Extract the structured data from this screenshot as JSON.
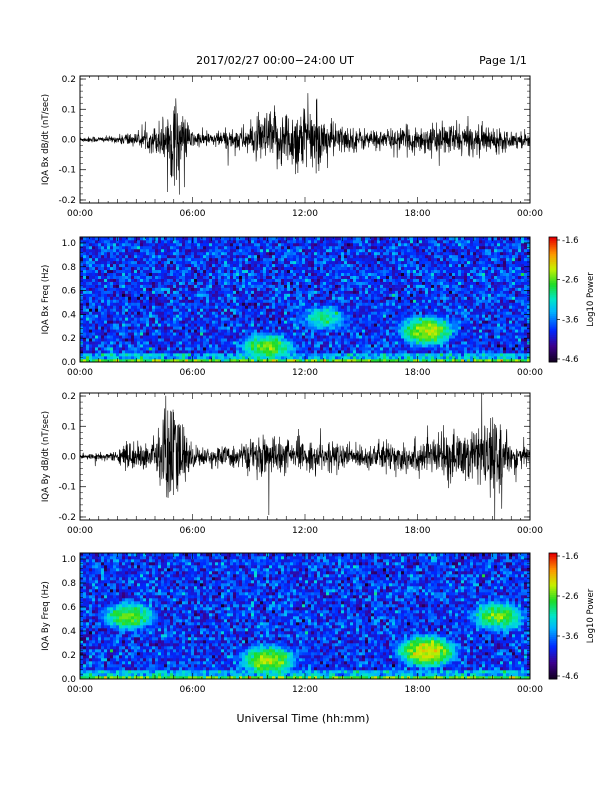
{
  "header": {
    "title": "2017/02/27  00:00−24:00 UT",
    "page": "Page 1/1"
  },
  "footer": {
    "xlabel": "Universal Time (hh:mm)"
  },
  "colorbar": {
    "label": "Log10 Power",
    "ticks": [
      "-1.6",
      "-2.6",
      "-3.6",
      "-4.6"
    ]
  },
  "chart_data": [
    {
      "type": "line",
      "ylabel": "IQA Bx dB/dt (nT/sec)",
      "x_ticks": [
        "00:00",
        "06:00",
        "12:00",
        "18:00",
        "00:00"
      ],
      "y_ticks": [
        "-0.2",
        "-0.1",
        "0.0",
        "0.1",
        "0.2"
      ],
      "xlim": [
        0,
        24
      ],
      "ylim": [
        -0.21,
        0.21
      ],
      "envelope_hours": [
        0,
        2,
        2.5,
        3,
        4,
        4.5,
        5,
        6,
        7,
        8,
        9,
        10,
        11,
        12,
        13,
        14,
        15,
        16,
        17,
        18,
        19,
        20,
        21,
        22,
        23,
        24
      ],
      "envelope_amplitude": [
        0.01,
        0.012,
        0.03,
        0.02,
        0.05,
        0.09,
        0.16,
        0.03,
        0.025,
        0.04,
        0.05,
        0.1,
        0.11,
        0.13,
        0.08,
        0.05,
        0.04,
        0.035,
        0.04,
        0.05,
        0.05,
        0.06,
        0.05,
        0.05,
        0.03,
        0.03
      ]
    },
    {
      "type": "heatmap",
      "ylabel": "IQA Bx Freq (Hz)",
      "x_ticks": [
        "00:00",
        "06:00",
        "12:00",
        "18:00",
        "00:00"
      ],
      "y_ticks": [
        "0.0",
        "0.2",
        "0.4",
        "0.6",
        "0.8",
        "1.0"
      ],
      "xlim": [
        0,
        24
      ],
      "ylim": [
        0,
        1.05
      ],
      "zlim": [
        -4.6,
        -1.6
      ],
      "features": [
        {
          "hour": 10.0,
          "freq": 0.12,
          "power": -2.6
        },
        {
          "hour": 13.0,
          "freq": 0.35,
          "power": -3.0
        },
        {
          "hour": 18.5,
          "freq": 0.25,
          "power": -2.4
        }
      ]
    },
    {
      "type": "line",
      "ylabel": "IQA By dB/dt (nT/sec)",
      "x_ticks": [
        "00:00",
        "06:00",
        "12:00",
        "18:00",
        "00:00"
      ],
      "y_ticks": [
        "-0.2",
        "-0.1",
        "0.0",
        "0.1",
        "0.2"
      ],
      "xlim": [
        0,
        24
      ],
      "ylim": [
        -0.21,
        0.21
      ],
      "envelope_hours": [
        0,
        2,
        2.5,
        3,
        4,
        4.5,
        5,
        6,
        7,
        8,
        9,
        10,
        11,
        12,
        13,
        14,
        15,
        16,
        17,
        18,
        19,
        20,
        21,
        22,
        23,
        24
      ],
      "envelope_amplitude": [
        0.012,
        0.015,
        0.06,
        0.04,
        0.06,
        0.2,
        0.2,
        0.04,
        0.03,
        0.04,
        0.05,
        0.08,
        0.06,
        0.05,
        0.05,
        0.05,
        0.04,
        0.05,
        0.06,
        0.06,
        0.07,
        0.09,
        0.1,
        0.14,
        0.05,
        0.04
      ]
    },
    {
      "type": "heatmap",
      "ylabel": "IQA By Freq (Hz)",
      "x_ticks": [
        "00:00",
        "06:00",
        "12:00",
        "18:00",
        "00:00"
      ],
      "y_ticks": [
        "0.0",
        "0.2",
        "0.4",
        "0.6",
        "0.8",
        "1.0"
      ],
      "xlim": [
        0,
        24
      ],
      "ylim": [
        0,
        1.05
      ],
      "zlim": [
        -4.6,
        -1.6
      ],
      "features": [
        {
          "hour": 2.6,
          "freq": 0.5,
          "power": -2.6
        },
        {
          "hour": 10.0,
          "freq": 0.15,
          "power": -2.4
        },
        {
          "hour": 18.5,
          "freq": 0.22,
          "power": -2.2
        },
        {
          "hour": 22.3,
          "freq": 0.5,
          "power": -2.6
        }
      ]
    }
  ]
}
